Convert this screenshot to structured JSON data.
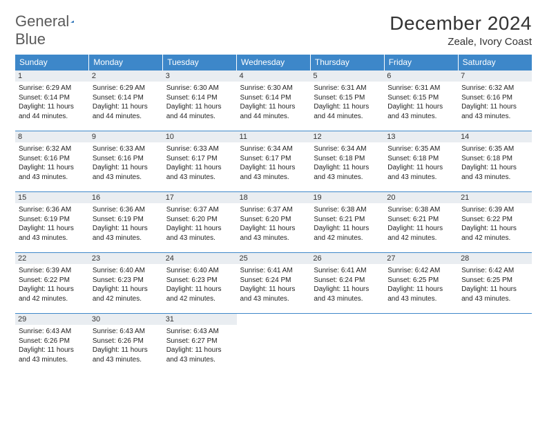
{
  "brand": {
    "word1": "General",
    "word2": "Blue"
  },
  "title": "December 2024",
  "location": "Zeale, Ivory Coast",
  "colors": {
    "header_bg": "#3d87c9",
    "header_text": "#ffffff",
    "daynum_bg": "#e9edf1",
    "border": "#3d87c9",
    "brand_gray": "#5a5a5a",
    "brand_blue": "#2f79c2"
  },
  "dayHeaders": [
    "Sunday",
    "Monday",
    "Tuesday",
    "Wednesday",
    "Thursday",
    "Friday",
    "Saturday"
  ],
  "weeks": [
    [
      {
        "n": "1",
        "sr": "6:29 AM",
        "ss": "6:14 PM",
        "dl": "11 hours and 44 minutes."
      },
      {
        "n": "2",
        "sr": "6:29 AM",
        "ss": "6:14 PM",
        "dl": "11 hours and 44 minutes."
      },
      {
        "n": "3",
        "sr": "6:30 AM",
        "ss": "6:14 PM",
        "dl": "11 hours and 44 minutes."
      },
      {
        "n": "4",
        "sr": "6:30 AM",
        "ss": "6:14 PM",
        "dl": "11 hours and 44 minutes."
      },
      {
        "n": "5",
        "sr": "6:31 AM",
        "ss": "6:15 PM",
        "dl": "11 hours and 44 minutes."
      },
      {
        "n": "6",
        "sr": "6:31 AM",
        "ss": "6:15 PM",
        "dl": "11 hours and 43 minutes."
      },
      {
        "n": "7",
        "sr": "6:32 AM",
        "ss": "6:16 PM",
        "dl": "11 hours and 43 minutes."
      }
    ],
    [
      {
        "n": "8",
        "sr": "6:32 AM",
        "ss": "6:16 PM",
        "dl": "11 hours and 43 minutes."
      },
      {
        "n": "9",
        "sr": "6:33 AM",
        "ss": "6:16 PM",
        "dl": "11 hours and 43 minutes."
      },
      {
        "n": "10",
        "sr": "6:33 AM",
        "ss": "6:17 PM",
        "dl": "11 hours and 43 minutes."
      },
      {
        "n": "11",
        "sr": "6:34 AM",
        "ss": "6:17 PM",
        "dl": "11 hours and 43 minutes."
      },
      {
        "n": "12",
        "sr": "6:34 AM",
        "ss": "6:18 PM",
        "dl": "11 hours and 43 minutes."
      },
      {
        "n": "13",
        "sr": "6:35 AM",
        "ss": "6:18 PM",
        "dl": "11 hours and 43 minutes."
      },
      {
        "n": "14",
        "sr": "6:35 AM",
        "ss": "6:18 PM",
        "dl": "11 hours and 43 minutes."
      }
    ],
    [
      {
        "n": "15",
        "sr": "6:36 AM",
        "ss": "6:19 PM",
        "dl": "11 hours and 43 minutes."
      },
      {
        "n": "16",
        "sr": "6:36 AM",
        "ss": "6:19 PM",
        "dl": "11 hours and 43 minutes."
      },
      {
        "n": "17",
        "sr": "6:37 AM",
        "ss": "6:20 PM",
        "dl": "11 hours and 43 minutes."
      },
      {
        "n": "18",
        "sr": "6:37 AM",
        "ss": "6:20 PM",
        "dl": "11 hours and 43 minutes."
      },
      {
        "n": "19",
        "sr": "6:38 AM",
        "ss": "6:21 PM",
        "dl": "11 hours and 42 minutes."
      },
      {
        "n": "20",
        "sr": "6:38 AM",
        "ss": "6:21 PM",
        "dl": "11 hours and 42 minutes."
      },
      {
        "n": "21",
        "sr": "6:39 AM",
        "ss": "6:22 PM",
        "dl": "11 hours and 42 minutes."
      }
    ],
    [
      {
        "n": "22",
        "sr": "6:39 AM",
        "ss": "6:22 PM",
        "dl": "11 hours and 42 minutes."
      },
      {
        "n": "23",
        "sr": "6:40 AM",
        "ss": "6:23 PM",
        "dl": "11 hours and 42 minutes."
      },
      {
        "n": "24",
        "sr": "6:40 AM",
        "ss": "6:23 PM",
        "dl": "11 hours and 42 minutes."
      },
      {
        "n": "25",
        "sr": "6:41 AM",
        "ss": "6:24 PM",
        "dl": "11 hours and 43 minutes."
      },
      {
        "n": "26",
        "sr": "6:41 AM",
        "ss": "6:24 PM",
        "dl": "11 hours and 43 minutes."
      },
      {
        "n": "27",
        "sr": "6:42 AM",
        "ss": "6:25 PM",
        "dl": "11 hours and 43 minutes."
      },
      {
        "n": "28",
        "sr": "6:42 AM",
        "ss": "6:25 PM",
        "dl": "11 hours and 43 minutes."
      }
    ],
    [
      {
        "n": "29",
        "sr": "6:43 AM",
        "ss": "6:26 PM",
        "dl": "11 hours and 43 minutes."
      },
      {
        "n": "30",
        "sr": "6:43 AM",
        "ss": "6:26 PM",
        "dl": "11 hours and 43 minutes."
      },
      {
        "n": "31",
        "sr": "6:43 AM",
        "ss": "6:27 PM",
        "dl": "11 hours and 43 minutes."
      },
      null,
      null,
      null,
      null
    ]
  ],
  "labels": {
    "sunrise": "Sunrise:",
    "sunset": "Sunset:",
    "daylight": "Daylight:"
  }
}
